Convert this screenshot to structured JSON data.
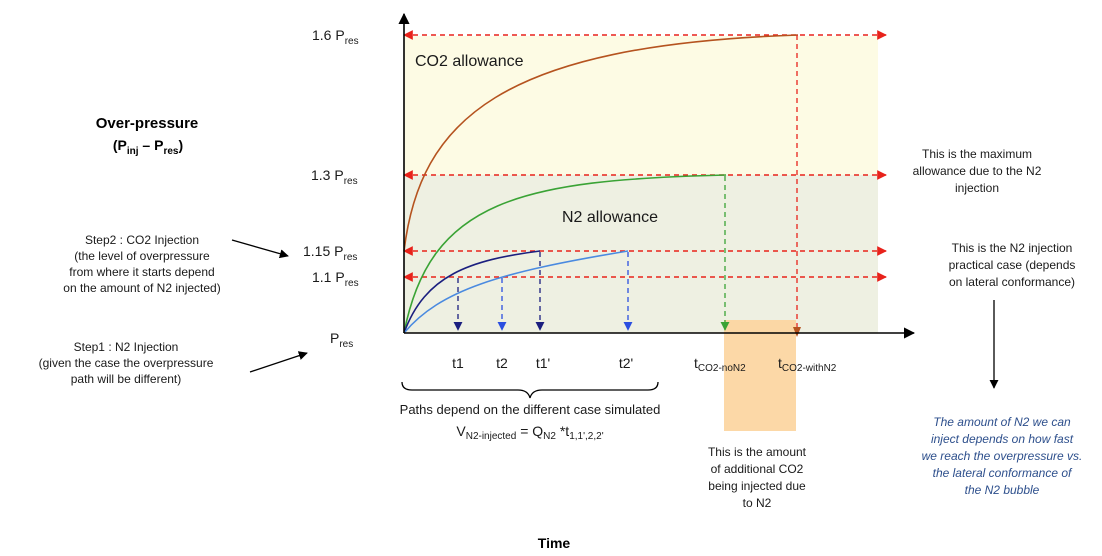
{
  "y_axis": {
    "title": "Over-pressure",
    "subtitle_open": "(P",
    "subtitle_inj": "inj",
    "subtitle_mid": " – P",
    "subtitle_res": "res",
    "subtitle_close": ")",
    "levels": [
      {
        "main": "1.6 P",
        "sub": "res"
      },
      {
        "main": "1.3 P",
        "sub": "res"
      },
      {
        "main": "1.15 P",
        "sub": "res"
      },
      {
        "main": "1.1 P",
        "sub": "res"
      },
      {
        "main": "P",
        "sub": "res"
      }
    ]
  },
  "x_axis": {
    "title": "Time",
    "ticks": [
      "t1",
      "t2",
      "t1'",
      "t2'"
    ],
    "t_noN2_main": "t",
    "t_noN2_sub": "CO2-noN2",
    "t_withN2_main": "t",
    "t_withN2_sub": "CO2-withN2"
  },
  "regions": {
    "co2": "CO2 allowance",
    "n2": "N2 allowance"
  },
  "colors": {
    "co2_region": "#fdfbe4",
    "n2_region": "#eef0e2",
    "orange_box": "#fcd59f",
    "red_dashed": "#e8221b",
    "co2_curve": "#b5531f",
    "n2_curve": "#3aa335",
    "dark_blue_curve": "#1b1f7f",
    "light_blue_curve": "#4a8ae0",
    "axis": "#000000",
    "note_italic": "#2d4f8c"
  },
  "annotations": {
    "step2": [
      "Step2 : CO2 Injection",
      "(the level of overpressure",
      "from where it starts depend",
      "on the amount of N2 injected)"
    ],
    "step1": [
      "Step1 : N2 Injection",
      "(given the case the overpressure",
      "path will be different)"
    ],
    "max_allowance": [
      "This is the maximum",
      "allowance due to the N2",
      "injection"
    ],
    "practical_case": [
      "This is the N2 injection",
      "practical case (depends",
      "on lateral conformance)"
    ],
    "additional_co2": [
      "This is the amount",
      "of additional CO2",
      "being injected due",
      "to N2"
    ],
    "conclusion": [
      "The amount of N2 we can",
      "inject depends on how fast",
      "we reach the overpressure vs.",
      "the lateral conformance of",
      "the N2 bubble"
    ],
    "paths_line": "Paths depend on the different case simulated",
    "volume_V": "V",
    "volume_V_sub": "N2-injected",
    "volume_eq": " = Q",
    "volume_Q_sub": "N2",
    "volume_star": " *t",
    "volume_t_sub": "1,1',2,2'"
  }
}
